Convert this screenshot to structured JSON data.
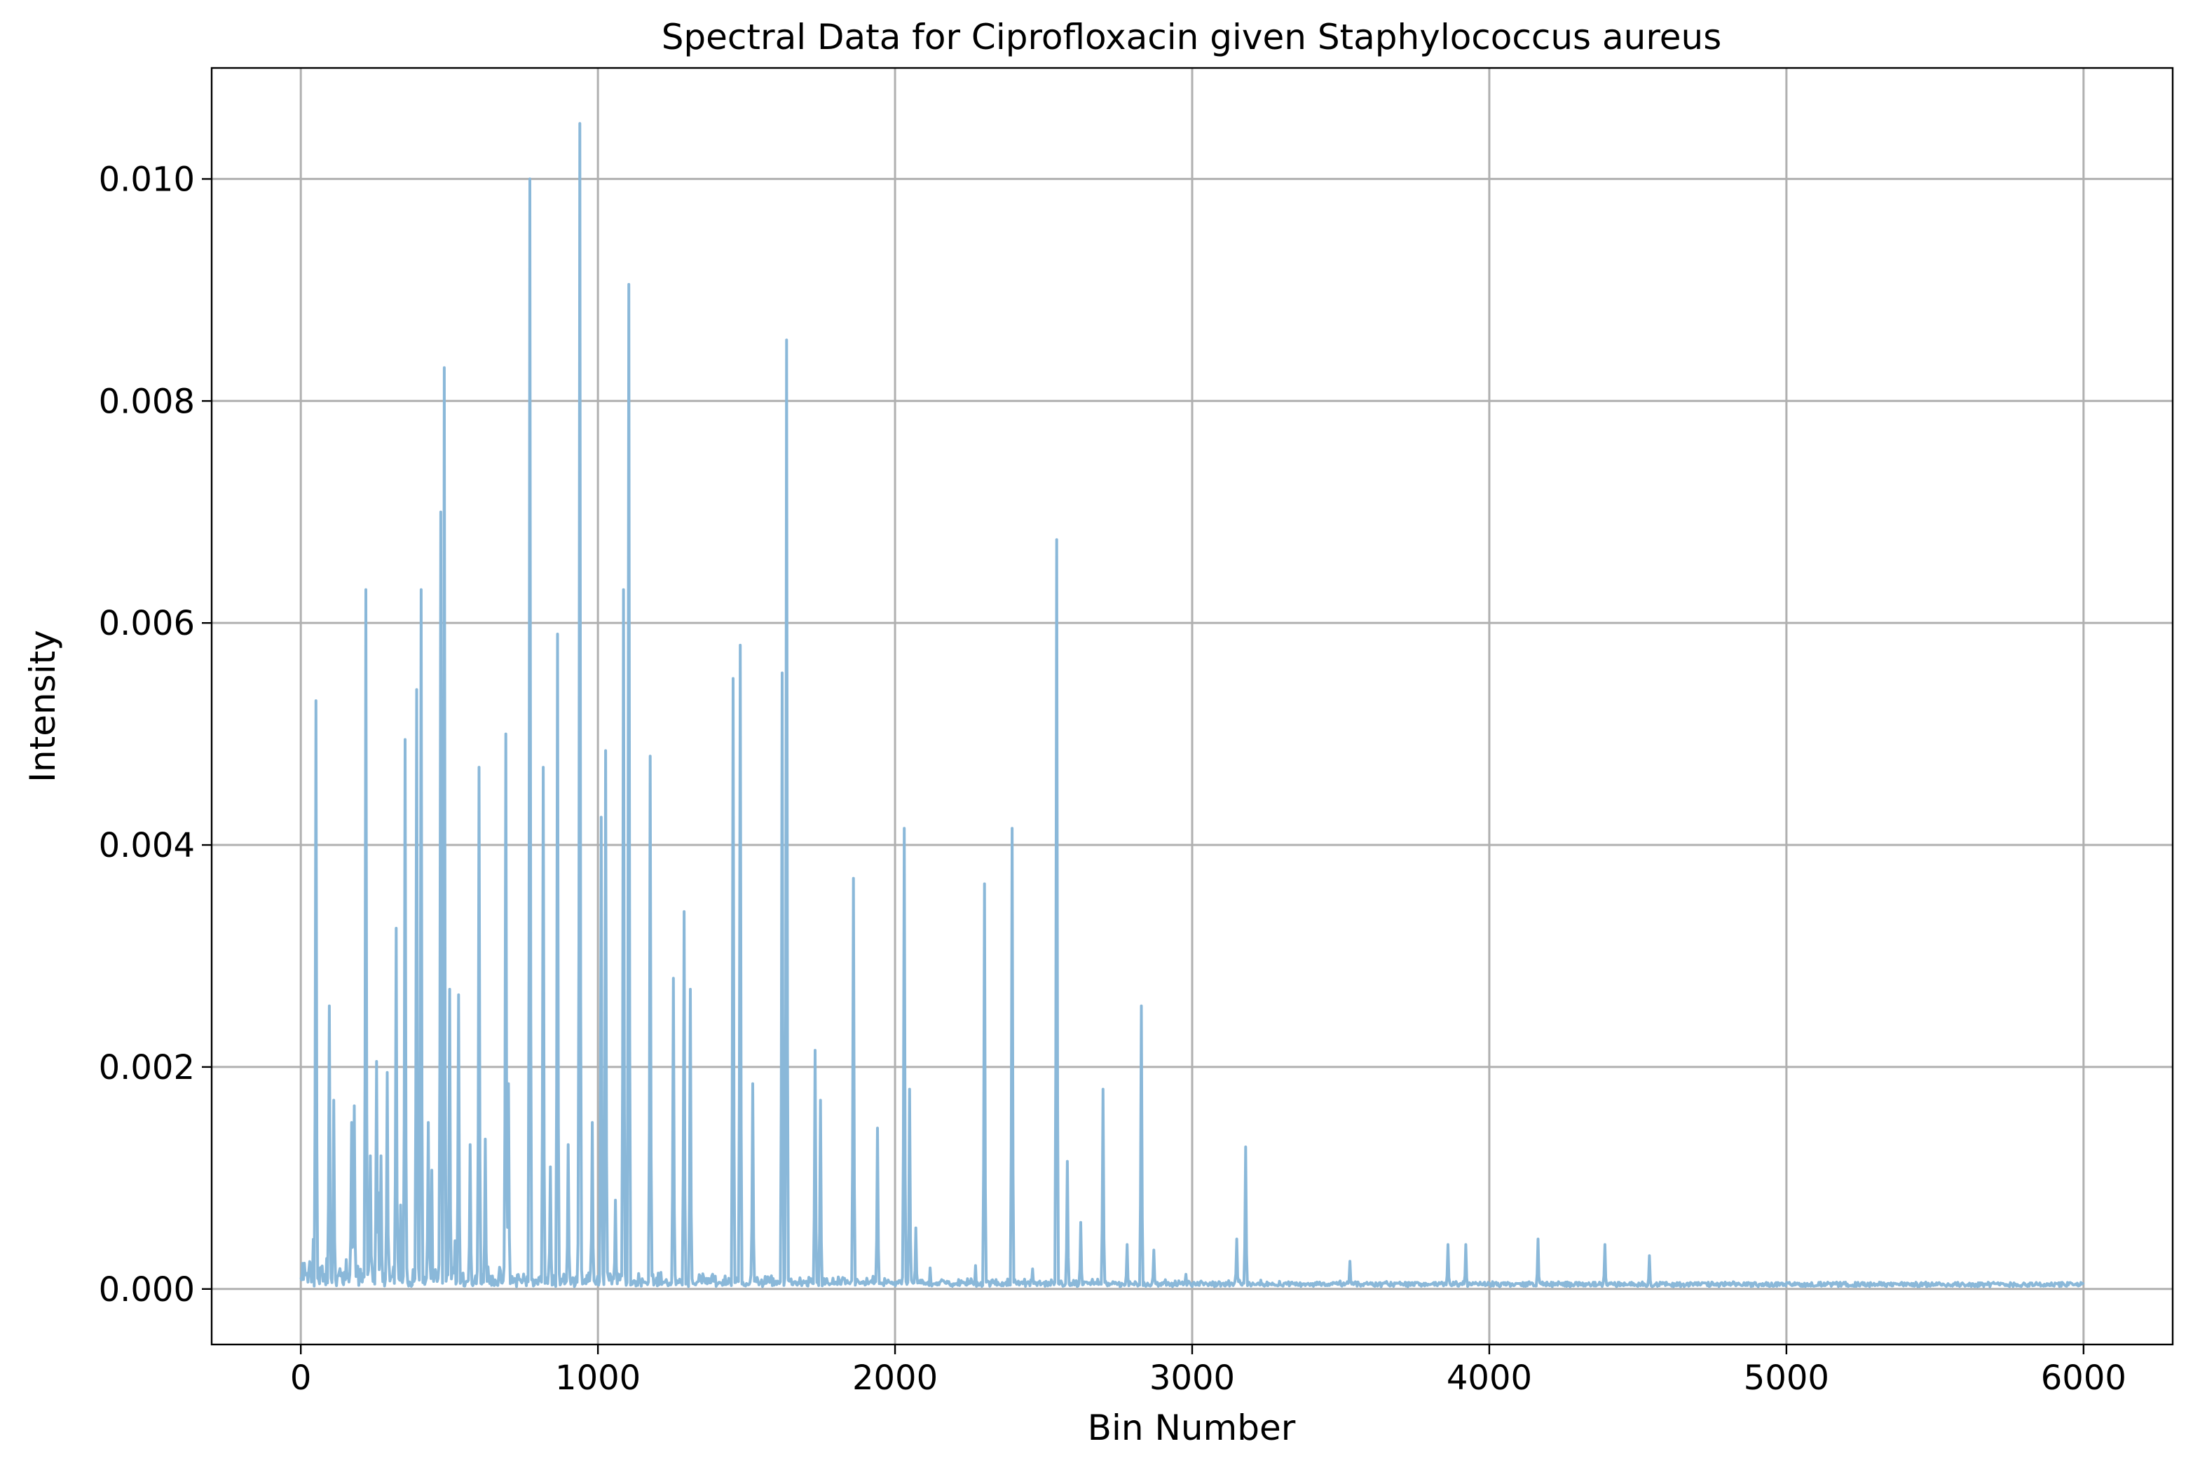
{
  "chart_data": {
    "type": "line",
    "title": "Spectral Data for Ciprofloxacin given Staphylococcus aureus",
    "xlabel": "Bin Number",
    "ylabel": "Intensity",
    "xlim": [
      -300,
      6300
    ],
    "ylim": [
      -0.0005,
      0.011
    ],
    "xticks": [
      0,
      1000,
      2000,
      3000,
      4000,
      5000,
      6000
    ],
    "xtick_labels": [
      "0",
      "1000",
      "2000",
      "3000",
      "4000",
      "5000",
      "6000"
    ],
    "yticks": [
      0.0,
      0.002,
      0.004,
      0.006,
      0.008,
      0.01
    ],
    "ytick_labels": [
      "0.000",
      "0.002",
      "0.004",
      "0.006",
      "0.008",
      "0.010"
    ],
    "grid": true,
    "line_color": "#8ab8d9",
    "series": [
      {
        "x_range": [
          0,
          6000
        ],
        "peaks": [
          [
            50,
            0.0053
          ],
          [
            95,
            0.00255
          ],
          [
            110,
            0.0017
          ],
          [
            170,
            0.0015
          ],
          [
            180,
            0.00165
          ],
          [
            220,
            0.0063
          ],
          [
            235,
            0.0012
          ],
          [
            255,
            0.00205
          ],
          [
            270,
            0.0012
          ],
          [
            290,
            0.00195
          ],
          [
            320,
            0.00325
          ],
          [
            350,
            0.00495
          ],
          [
            390,
            0.0054
          ],
          [
            405,
            0.0063
          ],
          [
            430,
            0.0015
          ],
          [
            470,
            0.007
          ],
          [
            483,
            0.0083
          ],
          [
            500,
            0.0027
          ],
          [
            530,
            0.00265
          ],
          [
            570,
            0.0013
          ],
          [
            600,
            0.0047
          ],
          [
            620,
            0.00135
          ],
          [
            690,
            0.005
          ],
          [
            700,
            0.00185
          ],
          [
            770,
            0.01
          ],
          [
            815,
            0.0047
          ],
          [
            840,
            0.0011
          ],
          [
            865,
            0.0059
          ],
          [
            900,
            0.0013
          ],
          [
            940,
            0.0105
          ],
          [
            980,
            0.0015
          ],
          [
            1010,
            0.00425
          ],
          [
            1025,
            0.00485
          ],
          [
            1060,
            0.0008
          ],
          [
            1085,
            0.0063
          ],
          [
            1105,
            0.00905
          ],
          [
            1175,
            0.0048
          ],
          [
            1255,
            0.0028
          ],
          [
            1290,
            0.0034
          ],
          [
            1310,
            0.0027
          ],
          [
            1455,
            0.0055
          ],
          [
            1480,
            0.0058
          ],
          [
            1520,
            0.00185
          ],
          [
            1620,
            0.00555
          ],
          [
            1635,
            0.00855
          ],
          [
            1730,
            0.00215
          ],
          [
            1750,
            0.0017
          ],
          [
            1860,
            0.0037
          ],
          [
            1940,
            0.00145
          ],
          [
            2030,
            0.00415
          ],
          [
            2050,
            0.0018
          ],
          [
            2070,
            0.00055
          ],
          [
            2300,
            0.00365
          ],
          [
            2395,
            0.00415
          ],
          [
            2545,
            0.00675
          ],
          [
            2580,
            0.00115
          ],
          [
            2625,
            0.0006
          ],
          [
            2700,
            0.0018
          ],
          [
            2780,
            0.0004
          ],
          [
            2830,
            0.00255
          ],
          [
            2870,
            0.00035
          ],
          [
            3150,
            0.00045
          ],
          [
            3180,
            0.00128
          ],
          [
            3530,
            0.00025
          ],
          [
            3860,
            0.0004
          ],
          [
            3920,
            0.0004
          ],
          [
            4165,
            0.00045
          ],
          [
            4390,
            0.0004
          ],
          [
            4540,
            0.0003
          ]
        ]
      }
    ]
  }
}
